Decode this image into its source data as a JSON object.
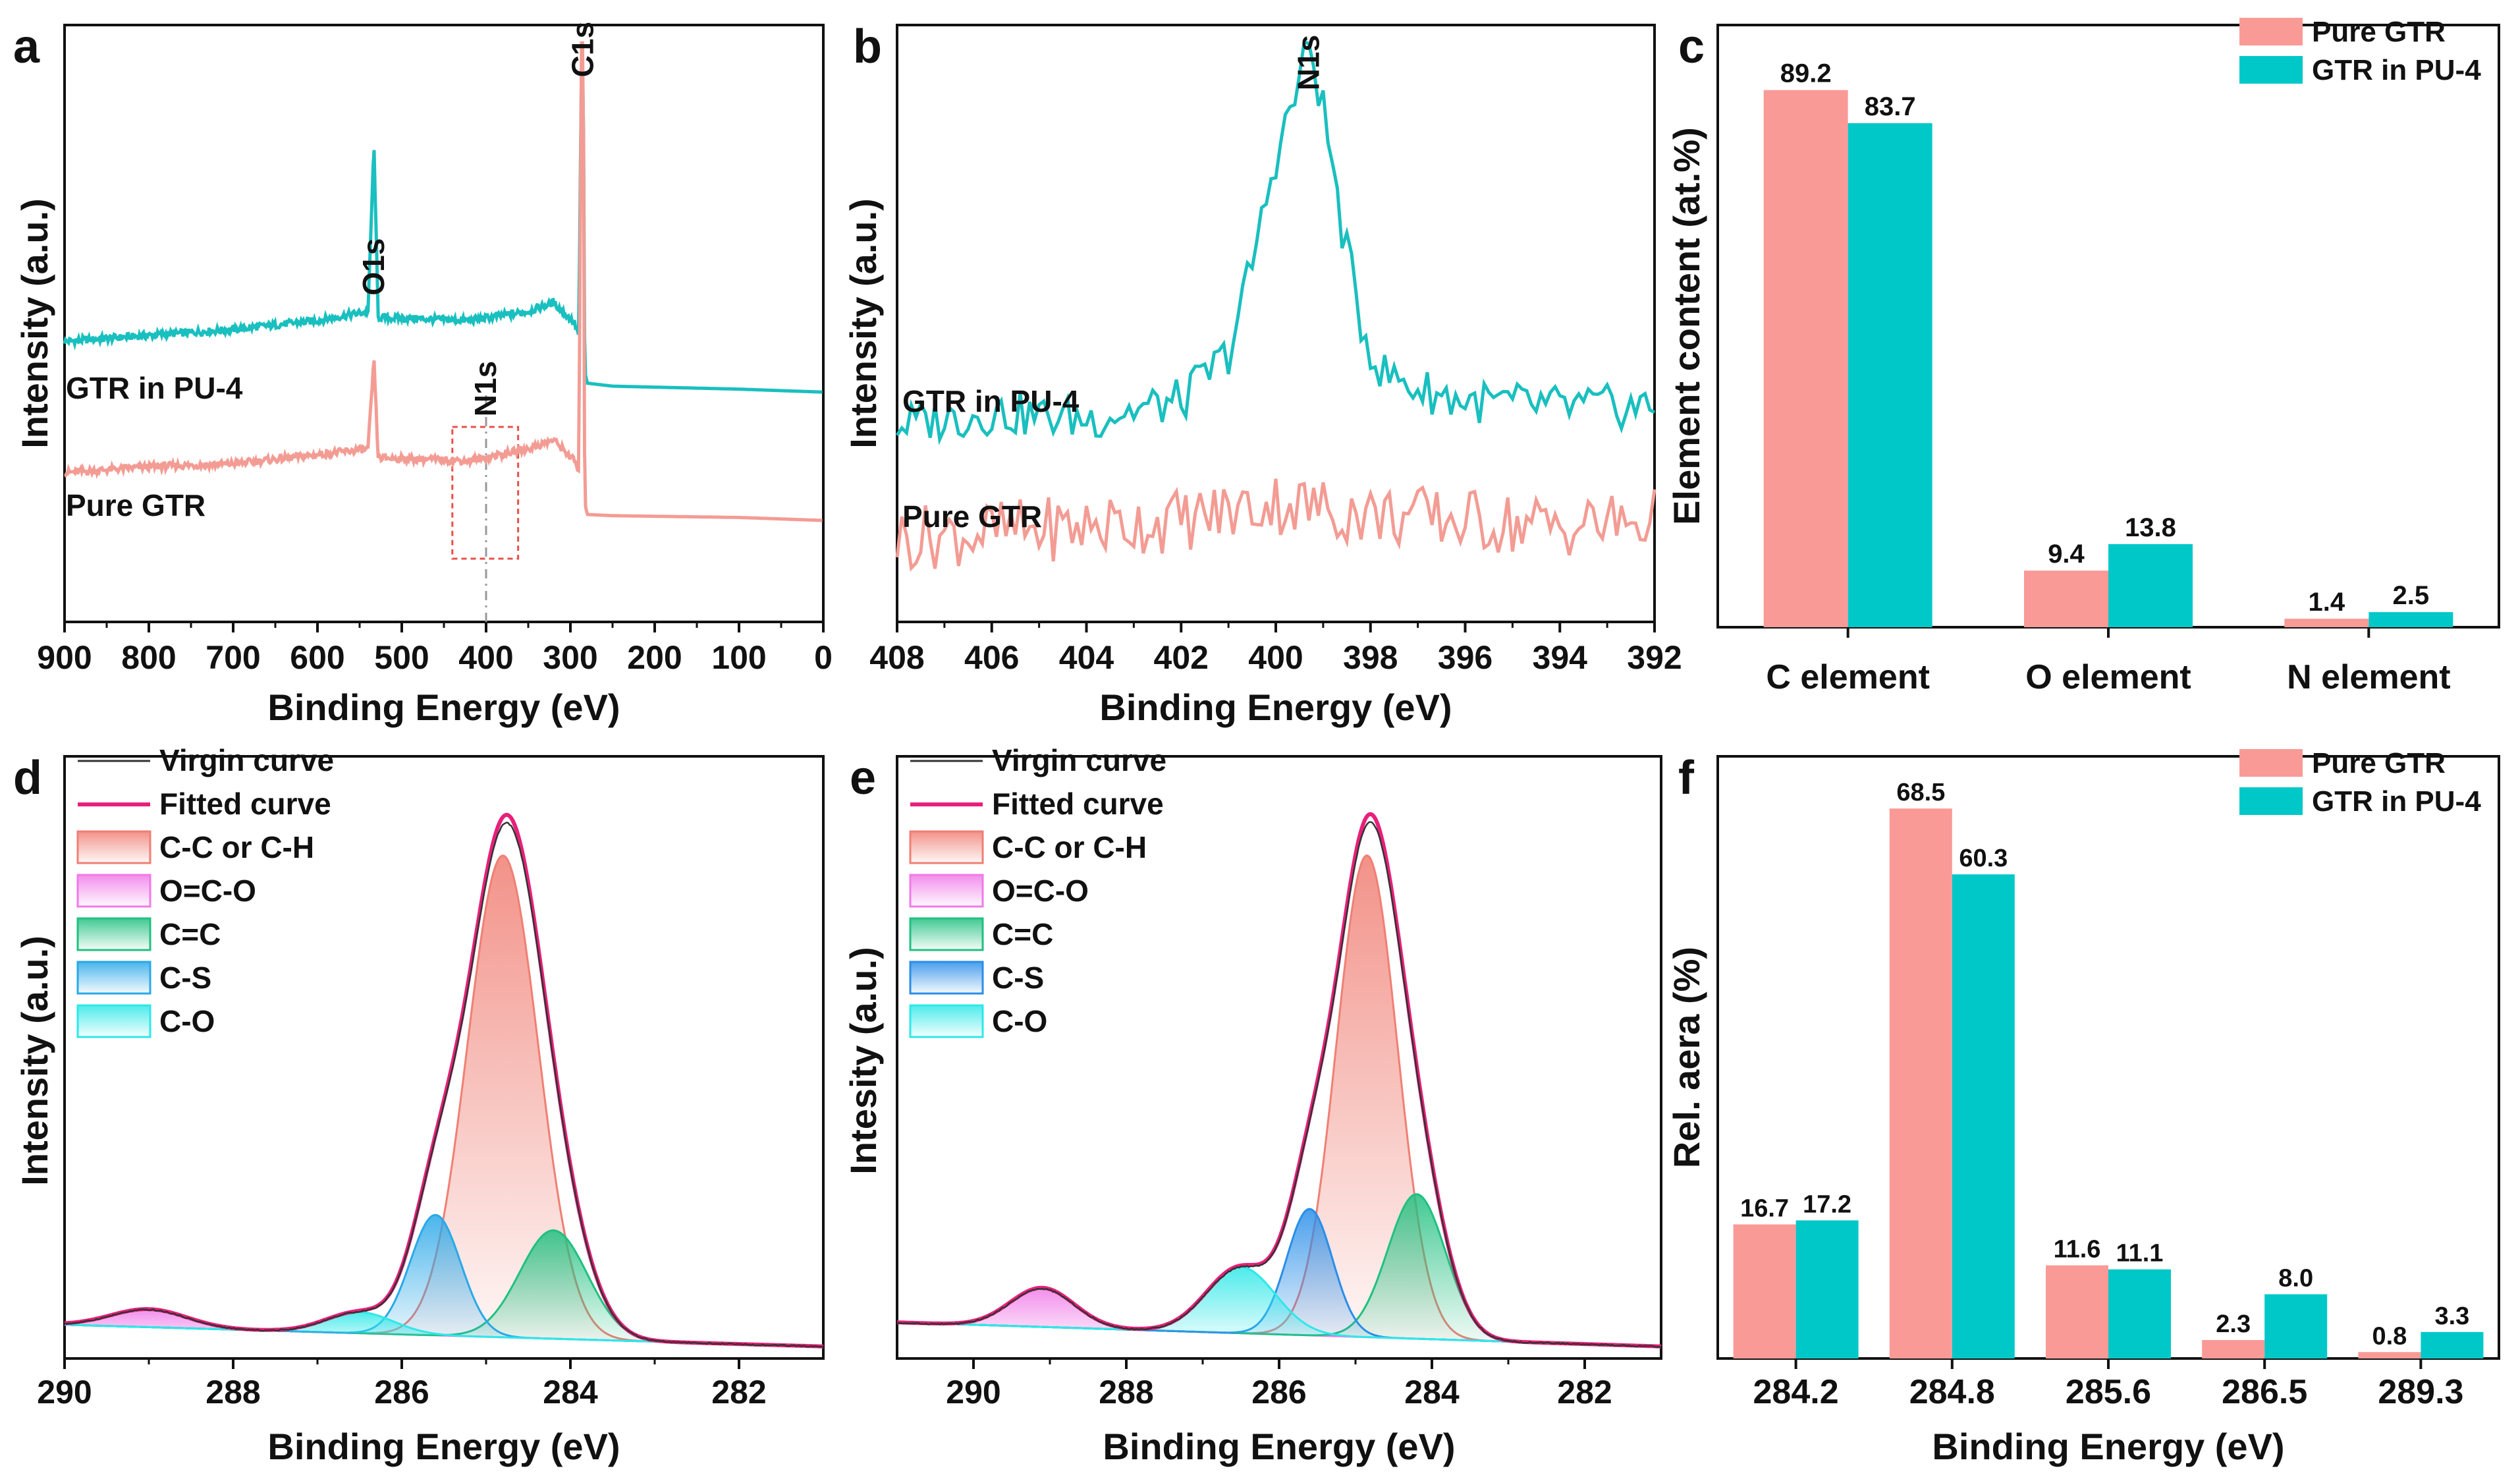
{
  "chart_data": [
    {
      "panel": "a",
      "type": "line",
      "xlabel": "Binding Energy (eV)",
      "ylabel": "Intensity (a.u.)",
      "xlim": [
        900,
        0
      ],
      "xticks": [
        900,
        800,
        700,
        600,
        500,
        400,
        300,
        200,
        100,
        0
      ],
      "series": [
        {
          "name": "GTR in PU-4",
          "color": "#1abfbf",
          "x": [
            900,
            800,
            700,
            600,
            540,
            533,
            528,
            420,
            350,
            320,
            295,
            290,
            287,
            284.8,
            283,
            280,
            250,
            100,
            0
          ],
          "y": [
            0.47,
            0.48,
            0.49,
            0.505,
            0.52,
            0.8,
            0.51,
            0.505,
            0.52,
            0.535,
            0.5,
            0.48,
            0.93,
            0.93,
            0.42,
            0.4,
            0.395,
            0.39,
            0.385
          ]
        },
        {
          "name": "Pure GTR",
          "color": "#f39c94",
          "x": [
            900,
            800,
            700,
            600,
            540,
            533,
            528,
            420,
            350,
            320,
            295,
            290,
            287,
            284.8,
            283,
            280,
            250,
            100,
            0
          ],
          "y": [
            0.25,
            0.26,
            0.265,
            0.28,
            0.29,
            0.44,
            0.275,
            0.27,
            0.29,
            0.305,
            0.27,
            0.25,
            0.97,
            0.97,
            0.2,
            0.18,
            0.178,
            0.175,
            0.17
          ]
        }
      ],
      "peak_labels": [
        "O1s",
        "C1s",
        "N1s"
      ],
      "peak_positions": [
        533,
        284.8,
        400
      ]
    },
    {
      "panel": "b",
      "type": "line",
      "xlabel": "Binding Energy (eV)",
      "ylabel": "Intensity (a.u.)",
      "xlim": [
        408,
        392
      ],
      "xticks": [
        408,
        406,
        404,
        402,
        400,
        398,
        396,
        394,
        392
      ],
      "series": [
        {
          "name": "GTR in PU-4",
          "color": "#1abfbf",
          "x": [
            408,
            406,
            404,
            402,
            401,
            400.5,
            400,
            399.6,
            399.3,
            399,
            398.6,
            398.2,
            397.8,
            397,
            396,
            394,
            392
          ],
          "y": [
            0.33,
            0.35,
            0.34,
            0.37,
            0.45,
            0.6,
            0.78,
            0.88,
            0.97,
            0.86,
            0.66,
            0.5,
            0.42,
            0.39,
            0.37,
            0.36,
            0.36
          ]
        },
        {
          "name": "Pure GTR",
          "color": "#f39c94",
          "x": [
            408,
            406,
            404,
            402,
            400,
            398,
            396,
            394,
            392
          ],
          "y": [
            0.14,
            0.15,
            0.16,
            0.17,
            0.2,
            0.18,
            0.17,
            0.16,
            0.17
          ]
        }
      ],
      "peak_labels": [
        "N1s"
      ]
    },
    {
      "panel": "c",
      "type": "bar",
      "ylabel": "Element content (at.%)",
      "categories": [
        "C element",
        "O element",
        "N element"
      ],
      "series": [
        {
          "name": "Pure GTR",
          "color": "#f99a97",
          "values": [
            89.2,
            9.4,
            1.4
          ],
          "labels": [
            "89.2",
            "9.4",
            "1.4"
          ]
        },
        {
          "name": "GTR in PU-4",
          "color": "#00c8c8",
          "values": [
            83.7,
            13.8,
            2.5
          ],
          "labels": [
            "83.7",
            "13.8",
            "2.5"
          ]
        }
      ],
      "ylim": [
        0,
        100
      ],
      "legend": "top-right"
    },
    {
      "panel": "d",
      "type": "area",
      "xlabel": "Binding Energy (eV)",
      "ylabel": "Intensity (a.u.)",
      "xlim": [
        290,
        281
      ],
      "xticks": [
        290,
        288,
        286,
        284,
        282
      ],
      "legend": [
        "Virgin curve",
        "Fitted curve",
        "C-C or C-H",
        "O=C-O",
        "C=C",
        "C-S",
        "C-O"
      ],
      "components": [
        {
          "name": "C-C or C-H",
          "center": 284.8,
          "height": 0.8,
          "width": 0.42,
          "color": "#f07f74"
        },
        {
          "name": "O=C-O",
          "center": 289.0,
          "height": 0.03,
          "width": 0.45,
          "color": "#f07ae8"
        },
        {
          "name": "C=C",
          "center": 284.2,
          "height": 0.18,
          "width": 0.4,
          "color": "#20c080"
        },
        {
          "name": "C-S",
          "center": 285.6,
          "height": 0.2,
          "width": 0.3,
          "color": "#2aa8e8"
        },
        {
          "name": "C-O",
          "center": 286.5,
          "height": 0.035,
          "width": 0.4,
          "color": "#2ee8e8"
        }
      ]
    },
    {
      "panel": "e",
      "type": "area",
      "xlabel": "Binding Energy (eV)",
      "ylabel": "Intesity (a.u.)",
      "xlim": [
        291,
        281
      ],
      "xticks": [
        290,
        288,
        286,
        284,
        282
      ],
      "legend": [
        "Virgin curve",
        "Fitted curve",
        "C-C or C-H",
        "O=C-O",
        "C=C",
        "C-S",
        "C-O"
      ],
      "components": [
        {
          "name": "C-C or C-H",
          "center": 284.85,
          "height": 0.8,
          "width": 0.4,
          "color": "#f07f74"
        },
        {
          "name": "O=C-O",
          "center": 289.1,
          "height": 0.065,
          "width": 0.42,
          "color": "#f07ae8"
        },
        {
          "name": "C=C",
          "center": 284.2,
          "height": 0.24,
          "width": 0.38,
          "color": "#20c080"
        },
        {
          "name": "C-S",
          "center": 285.6,
          "height": 0.21,
          "width": 0.3,
          "color": "#2a8ee8"
        },
        {
          "name": "C-O",
          "center": 286.5,
          "height": 0.11,
          "width": 0.45,
          "color": "#2ee8e8"
        }
      ]
    },
    {
      "panel": "f",
      "type": "bar",
      "xlabel": "Binding Energy (eV)",
      "ylabel": "Rel. aera (%)",
      "categories": [
        "284.2",
        "284.8",
        "285.6",
        "286.5",
        "289.3"
      ],
      "series": [
        {
          "name": "Pure GTR",
          "color": "#f99a97",
          "values": [
            16.7,
            68.5,
            11.6,
            2.3,
            0.8
          ],
          "labels": [
            "16.7",
            "68.5",
            "11.6",
            "2.3",
            "0.8"
          ]
        },
        {
          "name": "GTR in PU-4",
          "color": "#00c8c8",
          "values": [
            17.2,
            60.3,
            11.1,
            8.0,
            3.3
          ],
          "labels": [
            "17.2",
            "60.3",
            "11.1",
            "8.0",
            "3.3"
          ]
        }
      ],
      "ylim": [
        0,
        75
      ],
      "legend": "top-right"
    }
  ]
}
